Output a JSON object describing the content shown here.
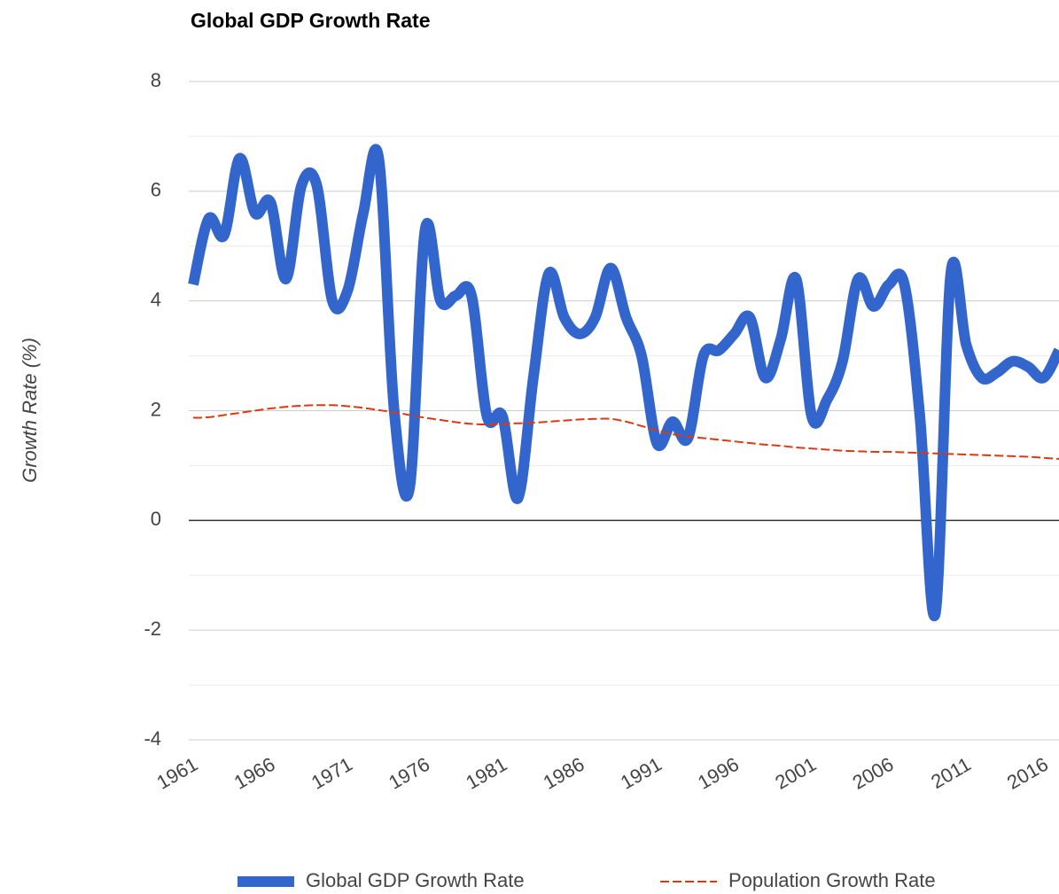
{
  "chart_data": {
    "type": "line",
    "title": "Global GDP Growth Rate",
    "y_label": "Growth Rate (%)",
    "x": [
      1961,
      1962,
      1963,
      1964,
      1965,
      1966,
      1967,
      1968,
      1969,
      1970,
      1971,
      1972,
      1973,
      1974,
      1975,
      1976,
      1977,
      1978,
      1979,
      1980,
      1981,
      1982,
      1983,
      1984,
      1985,
      1986,
      1987,
      1988,
      1989,
      1990,
      1991,
      1992,
      1993,
      1994,
      1995,
      1996,
      1997,
      1998,
      1999,
      2000,
      2001,
      2002,
      2003,
      2004,
      2005,
      2006,
      2007,
      2008,
      2009,
      2010,
      2011,
      2012,
      2013,
      2014,
      2015,
      2016,
      2017
    ],
    "series": [
      {
        "name": "Global GDP Growth Rate",
        "color": "#3366cc",
        "line_width": 12,
        "dashed": false,
        "values": [
          4.3,
          5.5,
          5.2,
          6.6,
          5.6,
          5.8,
          4.4,
          6.1,
          6.1,
          4.0,
          4.2,
          5.6,
          6.6,
          2.0,
          0.6,
          5.3,
          4.0,
          4.1,
          4.1,
          1.9,
          1.9,
          0.4,
          2.6,
          4.5,
          3.7,
          3.4,
          3.7,
          4.6,
          3.7,
          3.0,
          1.4,
          1.8,
          1.5,
          3.0,
          3.1,
          3.4,
          3.7,
          2.6,
          3.3,
          4.4,
          1.9,
          2.2,
          2.9,
          4.4,
          3.9,
          4.3,
          4.3,
          1.9,
          -1.7,
          4.5,
          3.2,
          2.6,
          2.7,
          2.9,
          2.8,
          2.6,
          3.1
        ]
      },
      {
        "name": "Population Growth Rate",
        "color": "#dc3912",
        "line_width": 2,
        "dashed": true,
        "values": [
          1.87,
          1.88,
          1.92,
          1.96,
          2.0,
          2.04,
          2.07,
          2.09,
          2.1,
          2.1,
          2.08,
          2.05,
          2.01,
          1.97,
          1.92,
          1.87,
          1.83,
          1.79,
          1.76,
          1.75,
          1.76,
          1.77,
          1.78,
          1.8,
          1.82,
          1.84,
          1.85,
          1.85,
          1.8,
          1.72,
          1.64,
          1.57,
          1.53,
          1.5,
          1.47,
          1.44,
          1.41,
          1.38,
          1.36,
          1.33,
          1.31,
          1.29,
          1.27,
          1.26,
          1.25,
          1.25,
          1.24,
          1.23,
          1.22,
          1.21,
          1.2,
          1.19,
          1.18,
          1.17,
          1.16,
          1.14,
          1.12
        ]
      }
    ],
    "xlim": [
      1961,
      2017
    ],
    "xticks": [
      1961,
      1966,
      1971,
      1976,
      1981,
      1986,
      1991,
      1996,
      2001,
      2006,
      2011,
      2016
    ],
    "ylim": [
      -4,
      8
    ],
    "yticks": [
      -4,
      -2,
      0,
      2,
      4,
      6,
      8
    ],
    "y_minor_ticks": [
      -3,
      -1,
      1,
      3,
      5,
      7
    ],
    "grid": true,
    "smooth": true,
    "legend": "bottom"
  }
}
